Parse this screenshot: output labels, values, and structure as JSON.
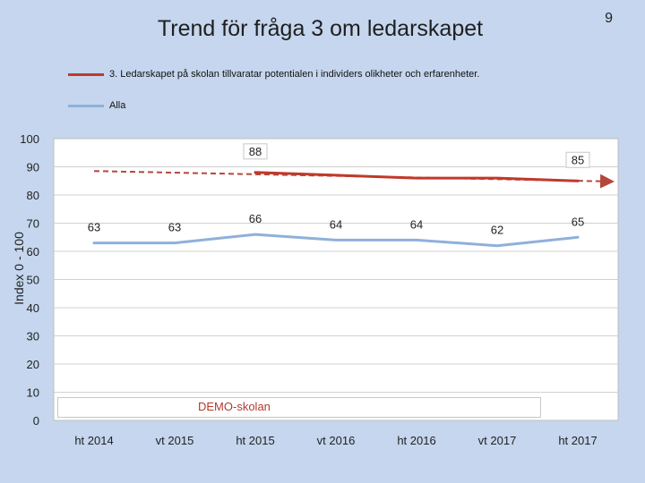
{
  "slide": {
    "title": "Trend för fråga 3 om ledarskapet",
    "page_number": "9",
    "note": "DEMO-skolan"
  },
  "colors": {
    "background": "#c5d6ee",
    "school_line": "#c0392b",
    "trend_line": "#b5473a",
    "alla_line": "#8fb0db",
    "plot_bg": "#ffffff",
    "grid": "#d0d0d0"
  },
  "chart_data": {
    "type": "line",
    "title": "Trend för fråga 3 om ledarskapet",
    "xlabel": "",
    "ylabel": "Index 0 - 100",
    "ylim": [
      0,
      100
    ],
    "yticks": [
      0,
      10,
      20,
      30,
      40,
      50,
      60,
      70,
      80,
      90,
      100
    ],
    "grid": true,
    "legend_position": "top-left",
    "categories": [
      "ht 2014",
      "vt 2015",
      "ht 2015",
      "vt 2016",
      "ht 2016",
      "vt 2017",
      "ht 2017"
    ],
    "series": [
      {
        "name": "3.   Ledarskapet på skolan tillvaratar potentialen i individers olikheter och erfarenheter.",
        "color": "#c0392b",
        "values": [
          null,
          null,
          88,
          87,
          86,
          86,
          85
        ],
        "data_labels": [
          "",
          "",
          "88",
          "",
          "",
          "",
          "85"
        ]
      },
      {
        "name": "Alla",
        "color": "#8fb0db",
        "values": [
          63,
          63,
          66,
          64,
          64,
          62,
          65
        ],
        "data_labels": [
          "63",
          "63",
          "66",
          "64",
          "64",
          "62",
          "65"
        ]
      }
    ],
    "trendline": {
      "series": "3.   Ledarskapet på skolan tillvaratar potentialen i individers olikheter och erfarenheter.",
      "start_value": 88.5,
      "end_value": 84.8,
      "style": "dashed-arrow"
    }
  }
}
